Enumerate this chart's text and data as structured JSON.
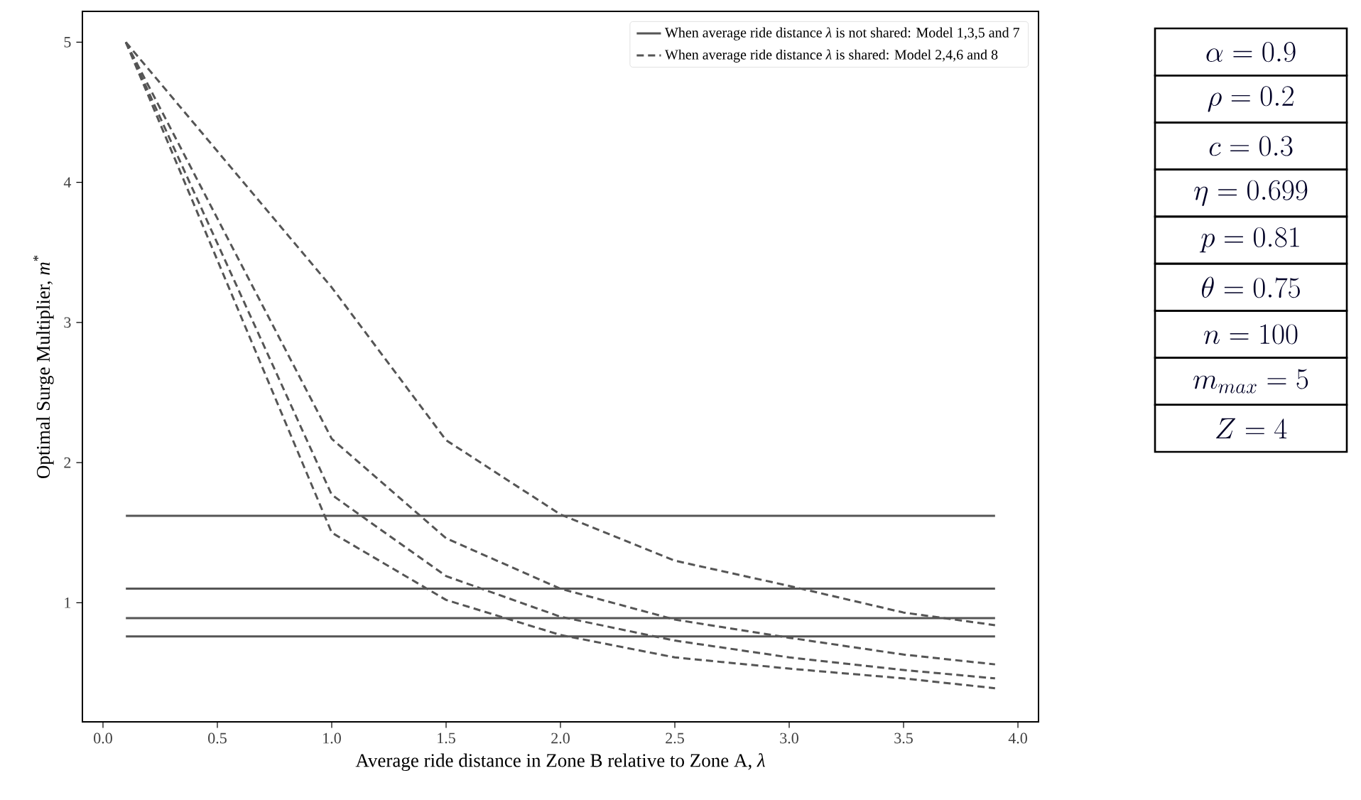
{
  "chart_data": [
    {
      "type": "line",
      "xlabel": "Average ride distance in Zone B relative to Zone A, *λ*",
      "ylabel": "Optimal Surge Multiplier, *m*$^{*}$",
      "xlim": [
        -0.09,
        4.09
      ],
      "ylim": [
        0.15,
        5.22
      ],
      "xticks": [
        {
          "value": 0,
          "label": "0.0"
        },
        {
          "value": 0.5,
          "label": "0.5"
        },
        {
          "value": 1,
          "label": "1.0"
        },
        {
          "value": 1.5,
          "label": "1.5"
        },
        {
          "value": 2,
          "label": "2.0"
        },
        {
          "value": 2.5,
          "label": "2.5"
        },
        {
          "value": 3,
          "label": "3.0"
        },
        {
          "value": 3.5,
          "label": "3.5"
        },
        {
          "value": 4,
          "label": "4.0"
        }
      ],
      "yticks": [
        1,
        2,
        3,
        4,
        5
      ],
      "legend": "top right",
      "grid": false,
      "marker": "none",
      "series": [
        {
          "name": "When average ride distance *λ* is not shared: Model 1,3,5 and 7",
          "color": "#555555",
          "line_style": "solid",
          "x": [
            0.1,
            3.9
          ],
          "values": [
            1.62,
            1.62
          ]
        },
        {
          "color": "#555555",
          "line_style": "solid",
          "x": [
            0.1,
            3.9
          ],
          "values": [
            1.1,
            1.1
          ]
        },
        {
          "color": "#555555",
          "line_style": "solid",
          "x": [
            0.1,
            3.9
          ],
          "values": [
            0.89,
            0.89
          ]
        },
        {
          "color": "#555555",
          "line_style": "solid",
          "x": [
            0.1,
            3.9
          ],
          "values": [
            0.76,
            0.76
          ]
        },
        {
          "name": "When average ride distance *λ* is shared: Model 2,4,6 and 8",
          "color": "#555555",
          "line_style": "dashed",
          "x": [
            0.1,
            1.0,
            1.5,
            2.0,
            2.5,
            3.0,
            3.5,
            3.9
          ],
          "values": [
            5,
            3.25,
            2.16,
            1.63,
            1.3,
            1.12,
            0.93,
            0.84
          ]
        },
        {
          "color": "#555555",
          "line_style": "dashed",
          "x": [
            0.1,
            1.0,
            1.5,
            2.0,
            2.5,
            3.0,
            3.5,
            3.9
          ],
          "values": [
            5,
            2.17,
            1.46,
            1.1,
            0.88,
            0.75,
            0.63,
            0.56
          ]
        },
        {
          "color": "#555555",
          "line_style": "dashed",
          "x": [
            0.1,
            1.0,
            1.5,
            2.0,
            2.5,
            3.0,
            3.5,
            3.9
          ],
          "values": [
            5,
            1.77,
            1.19,
            0.9,
            0.73,
            0.61,
            0.52,
            0.46
          ]
        },
        {
          "color": "#555555",
          "line_style": "dashed",
          "x": [
            0.1,
            1.0,
            1.5,
            2.0,
            2.5,
            3.0,
            3.5,
            3.9
          ],
          "values": [
            5,
            1.5,
            1.02,
            0.77,
            0.61,
            0.53,
            0.46,
            0.39
          ]
        }
      ]
    },
    {
      "type": "other",
      "annotations": [
        "\\alpha = 0.9",
        "\\rho = 0.2",
        "c = 0.3",
        "\\eta = 0.699",
        "p = 0.81",
        "\\theta = 0.75",
        "n = 100",
        "m_{max} = 5",
        "Z = 4"
      ]
    }
  ]
}
